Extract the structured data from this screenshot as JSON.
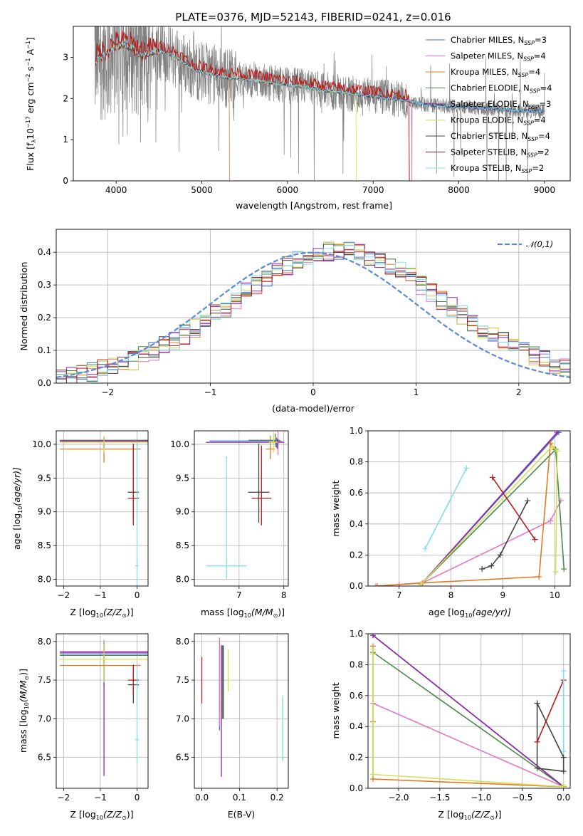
{
  "figure": {
    "title": "PLATE=0376, MJD=52143, FIBERID=0241, z=0.016"
  },
  "models": [
    {
      "label": "Chabrier MILES, N$_{SSP}$=3",
      "color": "#4472c4"
    },
    {
      "label": "Salpeter MILES, N$_{SSP}$=4",
      "color": "#e377c2"
    },
    {
      "label": "Kroupa MILES, N$_{SSP}$=4",
      "color": "#e07b24"
    },
    {
      "label": "Chabrier ELODIE, N$_{SSP}$=4",
      "color": "#4a8a4a"
    },
    {
      "label": "Salpeter ELODIE, N$_{SSP}$=3",
      "color": "#8e24aa"
    },
    {
      "label": "Kroupa ELODIE, N$_{SSP}$=4",
      "color": "#d4e157"
    },
    {
      "label": "Chabrier STELIB, N$_{SSP}$=4",
      "color": "#444444"
    },
    {
      "label": "Salpeter STELIB, N$_{SSP}$=2",
      "color": "#b71c1c"
    },
    {
      "label": "Kroupa STELIB, N$_{SSP}$=2",
      "color": "#80deea"
    }
  ],
  "legend_entries": [
    "Chabrier MILES, N",
    "Salpeter MILES, N",
    "Kroupa MILES, N",
    "Chabrier ELODIE, N",
    "Salpeter ELODIE, N",
    "Kroupa ELODIE, N",
    "Chabrier STELIB, N",
    "Salpeter STELIB, N",
    "Kroupa STELIB, N"
  ],
  "legend_sub": "SSP",
  "legend_counts": [
    "=3",
    "=4",
    "=4",
    "=4",
    "=3",
    "=4",
    "=4",
    "=2",
    "=2"
  ],
  "normal_label": "𝒩(0,1)",
  "chart_data": [
    {
      "type": "line",
      "id": "spectrum",
      "xlabel": "wavelength [Angstrom, rest frame]",
      "ylabel": "Flux [f",
      "ylabel_sub": "λ",
      "ylabel_rest": "10",
      "ylabel_exp": "−17",
      "ylabel_units": " erg cm",
      "ylabel_u1": "−2",
      "ylabel_u2": " s",
      "ylabel_u3": "−1",
      "ylabel_u4": " A",
      "ylabel_u5": "−1",
      "ylabel_end": "]",
      "xlim": [
        3500,
        9300
      ],
      "ylim": [
        0,
        3.75
      ],
      "xticks": [
        4000,
        5000,
        6000,
        7000,
        8000,
        9000
      ],
      "yticks": [
        0,
        1,
        2,
        3
      ],
      "continuum_x": [
        3750,
        3800,
        3900,
        4000,
        4100,
        4200,
        4300,
        4400,
        4500,
        4600,
        4700,
        4800,
        4900,
        5000,
        5100,
        5200,
        5300,
        5400,
        5500,
        5600,
        5700,
        5800,
        5900,
        6000,
        6200,
        6400,
        6600,
        6800,
        7000,
        7200,
        7400,
        7600,
        7800,
        8000,
        8200,
        8400,
        8600,
        8800,
        9000
      ],
      "continuum_y": [
        2.9,
        3.0,
        3.1,
        3.25,
        3.3,
        3.2,
        3.05,
        3.1,
        3.15,
        3.1,
        3.0,
        2.85,
        2.7,
        2.65,
        2.6,
        2.55,
        2.5,
        2.5,
        2.45,
        2.45,
        2.42,
        2.38,
        2.35,
        2.32,
        2.28,
        2.2,
        2.15,
        2.1,
        2.05,
        2.0,
        1.95,
        1.85,
        1.82,
        1.8,
        1.78,
        1.75,
        1.72,
        1.7,
        1.68
      ]
    },
    {
      "type": "line",
      "id": "residuals",
      "xlabel": "(data-model)/error",
      "ylabel": "Normed distribution",
      "xlim": [
        -2.5,
        2.5
      ],
      "ylim": [
        0,
        0.47
      ],
      "xticks": [
        -2,
        -1,
        0,
        1,
        2
      ],
      "xtick_labels": [
        "−2",
        "−1",
        "0",
        "1",
        "2"
      ],
      "yticks": [
        0.0,
        0.1,
        0.2,
        0.3,
        0.4
      ],
      "ytick_labels": [
        "0.0",
        "0.1",
        "0.2",
        "0.3",
        "0.4"
      ],
      "bin_edges_start": -2.5,
      "bin_width": 0.1,
      "hist_mean": [
        0.018,
        0.022,
        0.028,
        0.034,
        0.042,
        0.05,
        0.06,
        0.07,
        0.083,
        0.097,
        0.112,
        0.13,
        0.148,
        0.168,
        0.188,
        0.21,
        0.232,
        0.255,
        0.278,
        0.3,
        0.322,
        0.342,
        0.36,
        0.375,
        0.388,
        0.397,
        0.402,
        0.404,
        0.402,
        0.397,
        0.388,
        0.375,
        0.36,
        0.342,
        0.322,
        0.3,
        0.278,
        0.255,
        0.232,
        0.21,
        0.188,
        0.168,
        0.148,
        0.13,
        0.112,
        0.097,
        0.083,
        0.07,
        0.06,
        0.05
      ],
      "normal_mean": 0,
      "normal_sigma": 1
    },
    {
      "type": "scatter",
      "id": "age_vs_Z",
      "xlabel": "Z [log",
      "xlabel_sub": "10",
      "xlabel_rest": "(Z/Z",
      "xlabel_sun": "⊙",
      "xlabel_end": ")]",
      "ylabel": "age  [log",
      "ylabel_sub": "10",
      "ylabel_rest": "(age/yr)]",
      "xlim": [
        -2.2,
        0.3
      ],
      "ylim": [
        7.9,
        10.2
      ],
      "xticks": [
        -2,
        -1,
        0
      ],
      "xtick_labels": [
        "−2",
        "−1",
        "0"
      ],
      "yticks": [
        8.0,
        8.5,
        9.0,
        9.5,
        10.0
      ],
      "ytick_labels": [
        "8.0",
        "8.5",
        "9.0",
        "9.5",
        "10.0"
      ],
      "points": [
        {
          "m": 0,
          "x": -0.9,
          "xerr": [
            1.2,
            1.2
          ],
          "y": 10.05,
          "yerr": [
            0.1,
            0.05
          ]
        },
        {
          "m": 1,
          "x": -0.9,
          "xerr": [
            1.2,
            1.2
          ],
          "y": 10.04,
          "yerr": [
            0.1,
            0.05
          ]
        },
        {
          "m": 2,
          "x": -0.9,
          "xerr": [
            1.2,
            1.0
          ],
          "y": 9.93,
          "yerr": [
            0.2,
            0.05
          ]
        },
        {
          "m": 3,
          "x": -0.9,
          "xerr": [
            1.2,
            1.2
          ],
          "y": 10.06,
          "yerr": [
            0.1,
            0.05
          ]
        },
        {
          "m": 4,
          "x": -0.9,
          "xerr": [
            1.2,
            1.2
          ],
          "y": 10.05,
          "yerr": [
            0.1,
            0.05
          ]
        },
        {
          "m": 5,
          "x": -0.9,
          "xerr": [
            1.2,
            1.2
          ],
          "y": 10.03,
          "yerr": [
            0.15,
            0.1
          ]
        },
        {
          "m": 6,
          "x": -0.1,
          "xerr": [
            0.15,
            0.15
          ],
          "y": 9.29,
          "yerr": [
            0.45,
            0.72
          ]
        },
        {
          "m": 7,
          "x": -0.1,
          "xerr": [
            0.15,
            0.15
          ],
          "y": 9.2,
          "yerr": [
            0.4,
            0.78
          ]
        },
        {
          "m": 8,
          "x": 0.0,
          "xerr": [
            0.05,
            0.05
          ],
          "y": 8.2,
          "yerr": [
            0.3,
            1.8
          ]
        }
      ]
    },
    {
      "type": "scatter",
      "id": "age_vs_mass",
      "xlabel": "mass [log",
      "xlabel_sub": "10",
      "xlabel_rest": "(M/M",
      "xlabel_sun": "⊙",
      "xlabel_end": ")]",
      "xlim": [
        6.0,
        8.1
      ],
      "ylim": [
        7.9,
        10.2
      ],
      "xticks": [
        7,
        8
      ],
      "xtick_labels": [
        "7",
        "8"
      ],
      "yticks": [
        8.0,
        8.5,
        9.0,
        9.5,
        10.0
      ],
      "ytick_labels": [
        "8.0",
        "8.5",
        "9.0",
        "9.5",
        "10.0"
      ],
      "points": [
        {
          "m": 0,
          "x": 7.84,
          "xerr": [
            1.5,
            0.1
          ],
          "y": 10.05,
          "yerr": [
            0.1,
            0.05
          ]
        },
        {
          "m": 1,
          "x": 7.87,
          "xerr": [
            0.1,
            0.1
          ],
          "y": 10.04,
          "yerr": [
            0.2,
            0.15
          ]
        },
        {
          "m": 2,
          "x": 7.7,
          "xerr": [
            0.1,
            0.1
          ],
          "y": 9.93,
          "yerr": [
            0.15,
            0.2
          ]
        },
        {
          "m": 3,
          "x": 7.81,
          "xerr": [
            0.6,
            0.1
          ],
          "y": 10.06,
          "yerr": [
            0.1,
            0.1
          ]
        },
        {
          "m": 4,
          "x": 7.86,
          "xerr": [
            1.6,
            0.15
          ],
          "y": 10.03,
          "yerr": [
            0.1,
            0.05
          ]
        },
        {
          "m": 5,
          "x": 7.77,
          "xerr": [
            0.1,
            0.1
          ],
          "y": 10.03,
          "yerr": [
            0.15,
            0.15
          ]
        },
        {
          "m": 6,
          "x": 7.44,
          "xerr": [
            0.24,
            0.24
          ],
          "y": 9.29,
          "yerr": [
            0.45,
            0.72
          ]
        },
        {
          "m": 7,
          "x": 7.5,
          "xerr": [
            0.22,
            0.22
          ],
          "y": 9.2,
          "yerr": [
            0.4,
            0.78
          ]
        },
        {
          "m": 8,
          "x": 6.72,
          "xerr": [
            0.45,
            0.45
          ],
          "y": 8.2,
          "yerr": [
            0.2,
            1.62
          ]
        }
      ]
    },
    {
      "type": "line",
      "id": "mass_weight_vs_age",
      "xlabel": "age  [log",
      "xlabel_sub": "10",
      "xlabel_rest": "(age/yr)]",
      "ylabel": "mass weight",
      "xlim": [
        6.4,
        10.3
      ],
      "ylim": [
        0.0,
        1.0
      ],
      "xticks": [
        7,
        8,
        9,
        10
      ],
      "xtick_labels": [
        "7",
        "8",
        "9",
        "10"
      ],
      "yticks": [
        0.0,
        0.2,
        0.4,
        0.6,
        0.8,
        1.0
      ],
      "ytick_labels": [
        "0.0",
        "0.2",
        "0.4",
        "0.6",
        "0.8",
        "1.0"
      ],
      "series": [
        {
          "m": 0,
          "x": [
            7.42,
            10.08
          ],
          "y": [
            0.01,
            0.99
          ]
        },
        {
          "m": 1,
          "x": [
            6.55,
            7.0,
            7.45,
            9.92,
            10.12
          ],
          "y": [
            0.0,
            0.01,
            0.02,
            0.42,
            0.55
          ]
        },
        {
          "m": 2,
          "x": [
            6.58,
            7.45,
            9.7,
            9.92,
            10.0
          ],
          "y": [
            0.0,
            0.02,
            0.06,
            0.92,
            0.88
          ]
        },
        {
          "m": 3,
          "x": [
            7.42,
            10.02,
            10.18
          ],
          "y": [
            0.01,
            0.88,
            0.11
          ]
        },
        {
          "m": 4,
          "x": [
            7.42,
            10.05
          ],
          "y": [
            0.01,
            0.99
          ]
        },
        {
          "m": 5,
          "x": [
            7.42,
            9.95,
            10.05,
            10.02
          ],
          "y": [
            0.01,
            0.9,
            0.87,
            0.09
          ]
        },
        {
          "m": 6,
          "x": [
            8.6,
            8.78,
            8.95,
            9.48
          ],
          "y": [
            0.11,
            0.13,
            0.2,
            0.55
          ]
        },
        {
          "m": 7,
          "x": [
            8.8,
            9.62
          ],
          "y": [
            0.7,
            0.3
          ]
        },
        {
          "m": 8,
          "x": [
            7.5,
            8.3
          ],
          "y": [
            0.24,
            0.76
          ]
        }
      ]
    },
    {
      "type": "scatter",
      "id": "mass_vs_Z",
      "xlabel": "Z [log",
      "xlabel_sub": "10",
      "xlabel_rest": "(Z/Z",
      "xlabel_sun": "⊙",
      "xlabel_end": ")]",
      "ylabel": "mass [log",
      "ylabel_sub": "10",
      "ylabel_rest": "(M/M",
      "ylabel_sun": "⊙",
      "ylabel_end": ")]",
      "xlim": [
        -2.2,
        0.3
      ],
      "ylim": [
        6.1,
        8.1
      ],
      "xticks": [
        -2,
        -1,
        0
      ],
      "xtick_labels": [
        "−2",
        "−1",
        "0"
      ],
      "yticks": [
        6.5,
        7.0,
        7.5,
        8.0
      ],
      "ytick_labels": [
        "6.5",
        "7.0",
        "7.5",
        "8.0"
      ],
      "points": [
        {
          "m": 0,
          "x": -0.9,
          "xerr": [
            1.2,
            1.2
          ],
          "y": 7.84,
          "yerr": [
            0.1,
            0.15
          ]
        },
        {
          "m": 1,
          "x": -0.9,
          "xerr": [
            1.2,
            1.2
          ],
          "y": 7.87,
          "yerr": [
            0.3,
            0.15
          ]
        },
        {
          "m": 2,
          "x": -0.9,
          "xerr": [
            1.2,
            1.0
          ],
          "y": 7.69,
          "yerr": [
            0.2,
            0.1
          ]
        },
        {
          "m": 3,
          "x": -0.9,
          "xerr": [
            1.2,
            1.2
          ],
          "y": 7.82,
          "yerr": [
            0.4,
            0.1
          ]
        },
        {
          "m": 4,
          "x": -0.9,
          "xerr": [
            1.2,
            1.2
          ],
          "y": 7.86,
          "yerr": [
            1.6,
            0.1
          ]
        },
        {
          "m": 5,
          "x": -0.9,
          "xerr": [
            1.2,
            1.2
          ],
          "y": 7.77,
          "yerr": [
            0.3,
            0.2
          ]
        },
        {
          "m": 6,
          "x": -0.1,
          "xerr": [
            0.15,
            0.15
          ],
          "y": 7.44,
          "yerr": [
            0.24,
            0.24
          ]
        },
        {
          "m": 7,
          "x": -0.1,
          "xerr": [
            0.15,
            0.15
          ],
          "y": 7.5,
          "yerr": [
            0.2,
            0.2
          ]
        },
        {
          "m": 8,
          "x": 0.0,
          "xerr": [
            0.05,
            0.05
          ],
          "y": 6.73,
          "yerr": [
            0.3,
            0.9
          ]
        }
      ]
    },
    {
      "type": "scatter",
      "id": "mass_vs_EBV",
      "xlabel": "E(B-V)",
      "xlim": [
        -0.02,
        0.23
      ],
      "ylim": [
        6.1,
        8.1
      ],
      "xticks": [
        0.0,
        0.1,
        0.2
      ],
      "xtick_labels": [
        "0.0",
        "0.1",
        "0.2"
      ],
      "yticks": [
        6.5,
        7.0,
        7.5,
        8.0
      ],
      "ytick_labels": [
        "6.5",
        "7.0",
        "7.5",
        "8.0"
      ],
      "points": [
        {
          "m": 0,
          "x": 0.047,
          "y": 7.4,
          "yerr": [
            0.55,
            0.5
          ]
        },
        {
          "m": 1,
          "x": 0.047,
          "y": 7.5,
          "yerr": [
            0.6,
            0.55
          ]
        },
        {
          "m": 2,
          "x": 0.052,
          "y": 7.5,
          "yerr": [
            0.5,
            0.45
          ]
        },
        {
          "m": 3,
          "x": 0.055,
          "y": 7.5,
          "yerr": [
            0.5,
            0.45
          ]
        },
        {
          "m": 4,
          "x": 0.052,
          "y": 7.2,
          "yerr": [
            0.95,
            0.75
          ]
        },
        {
          "m": 5,
          "x": 0.07,
          "y": 7.6,
          "yerr": [
            0.25,
            0.3
          ]
        },
        {
          "m": 6,
          "x": 0.057,
          "y": 7.5,
          "yerr": [
            0.5,
            0.45
          ]
        },
        {
          "m": 7,
          "x": 0.0,
          "y": 7.5,
          "yerr": [
            0.3,
            0.3
          ]
        },
        {
          "m": 8,
          "x": 0.215,
          "y": 6.9,
          "yerr": [
            0.45,
            0.4
          ]
        }
      ]
    },
    {
      "type": "line",
      "id": "mass_weight_vs_Z",
      "xlabel": "Z [log",
      "xlabel_sub": "10",
      "xlabel_rest": "(Z/Z",
      "xlabel_sun": "⊙",
      "xlabel_end": ")]",
      "ylabel": "mass weight",
      "xlim": [
        -2.37,
        0.08
      ],
      "ylim": [
        0.0,
        1.0
      ],
      "xticks": [
        -2.0,
        -1.5,
        -1.0,
        -0.5,
        0.0
      ],
      "xtick_labels": [
        "−2.0",
        "−1.5",
        "−1.0",
        "−0.5",
        "0.0"
      ],
      "yticks": [
        0.0,
        0.2,
        0.4,
        0.6,
        0.8,
        1.0
      ],
      "ytick_labels": [
        "0.0",
        "0.2",
        "0.4",
        "0.6",
        "0.8",
        "1.0"
      ],
      "series": [
        {
          "m": 0,
          "x": [
            -2.31,
            0.0
          ],
          "y": [
            0.99,
            0.01
          ]
        },
        {
          "m": 1,
          "x": [
            -2.31,
            0.0
          ],
          "y": [
            0.55,
            0.01
          ]
        },
        {
          "m": 2,
          "x": [
            -2.31,
            -2.31,
            -2.31,
            0.0
          ],
          "y": [
            0.92,
            0.43,
            0.06,
            0.01
          ]
        },
        {
          "m": 3,
          "x": [
            -2.31,
            0.0
          ],
          "y": [
            0.88,
            0.01
          ]
        },
        {
          "m": 4,
          "x": [
            -2.31,
            0.0
          ],
          "y": [
            0.99,
            0.01
          ]
        },
        {
          "m": 5,
          "x": [
            -2.31,
            -2.31,
            -2.31,
            0.0,
            0.0
          ],
          "y": [
            0.9,
            0.87,
            0.09,
            0.01,
            0.02
          ]
        },
        {
          "m": 6,
          "x": [
            -0.32,
            -0.32,
            0.0,
            0.0,
            -0.32
          ],
          "y": [
            0.55,
            0.13,
            0.11,
            0.2,
            0.55
          ]
        },
        {
          "m": 7,
          "x": [
            -0.32,
            0.0
          ],
          "y": [
            0.3,
            0.7
          ]
        },
        {
          "m": 8,
          "x": [
            0.0,
            0.0
          ],
          "y": [
            0.24,
            0.76
          ]
        }
      ]
    }
  ]
}
